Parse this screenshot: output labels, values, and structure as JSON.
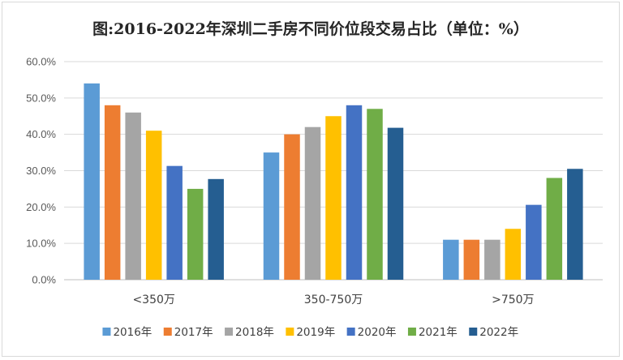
{
  "chart_data": {
    "type": "bar",
    "title": "图:2016-2022年深圳二手房不同价位段交易占比（单位：%）",
    "categories": [
      "<350万",
      "350-750万",
      ">750万"
    ],
    "series": [
      {
        "name": "2016年",
        "color": "#5b9bd5",
        "values": [
          54.0,
          35.0,
          11.0
        ]
      },
      {
        "name": "2017年",
        "color": "#ed7d31",
        "values": [
          48.0,
          40.0,
          11.0
        ]
      },
      {
        "name": "2018年",
        "color": "#a5a5a5",
        "values": [
          46.0,
          42.0,
          11.0
        ]
      },
      {
        "name": "2019年",
        "color": "#ffc000",
        "values": [
          41.0,
          45.0,
          14.0
        ]
      },
      {
        "name": "2020年",
        "color": "#4472c4",
        "values": [
          31.3,
          48.0,
          20.6
        ]
      },
      {
        "name": "2021年",
        "color": "#70ad47",
        "values": [
          25.0,
          47.0,
          28.0
        ]
      },
      {
        "name": "2022年",
        "color": "#255e91",
        "values": [
          27.7,
          41.8,
          30.5
        ]
      }
    ],
    "y_ticks": [
      "0.0%",
      "10.0%",
      "20.0%",
      "30.0%",
      "40.0%",
      "50.0%",
      "60.0%"
    ],
    "ylim": [
      0,
      60
    ],
    "grid": true,
    "legend_position": "bottom"
  }
}
